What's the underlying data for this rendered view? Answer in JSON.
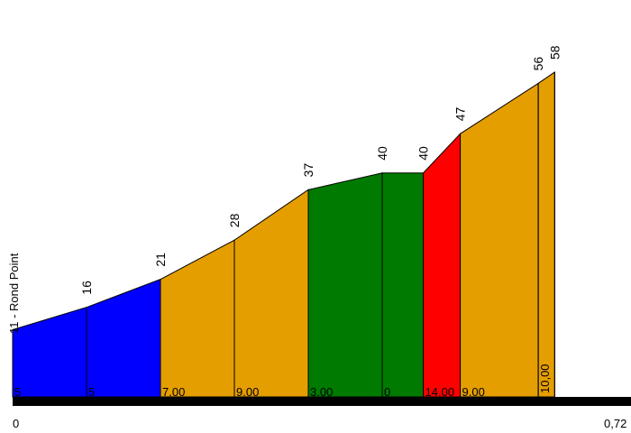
{
  "chart_data": {
    "type": "area",
    "title": "",
    "xlabel": "",
    "ylabel": "",
    "start_label": "11 - Rond Point",
    "x_start_label": "0",
    "x_end_label": "0,72",
    "x_range": [
      0,
      0.72
    ],
    "y_range": [
      0,
      58
    ],
    "points": [
      {
        "x": 0.0,
        "elev": null
      },
      {
        "x": 0.09,
        "elev": "16"
      },
      {
        "x": 0.18,
        "elev": "21"
      },
      {
        "x": 0.27,
        "elev": "28"
      },
      {
        "x": 0.36,
        "elev": "37"
      },
      {
        "x": 0.45,
        "elev": "40"
      },
      {
        "x": 0.5,
        "elev": "40"
      },
      {
        "x": 0.545,
        "elev": "47"
      },
      {
        "x": 0.64,
        "elev": "56"
      },
      {
        "x": 0.66,
        "elev": "58"
      }
    ],
    "elevations": [
      12,
      16,
      21,
      28,
      37,
      40,
      40,
      47,
      56,
      58
    ],
    "segments": [
      {
        "grade": "5",
        "color": "#0000ff"
      },
      {
        "grade": "5",
        "color": "#0000ff"
      },
      {
        "grade": "7.00",
        "color": "#e59e00"
      },
      {
        "grade": "9.00",
        "color": "#e59e00"
      },
      {
        "grade": "3.00",
        "color": "#007a00"
      },
      {
        "grade": "0",
        "color": "#007a00"
      },
      {
        "grade": "14.00",
        "color": "#ff0000"
      },
      {
        "grade": "9.00",
        "color": "#e59e00"
      },
      {
        "grade": "10,00",
        "color": "#e59e00"
      }
    ]
  }
}
